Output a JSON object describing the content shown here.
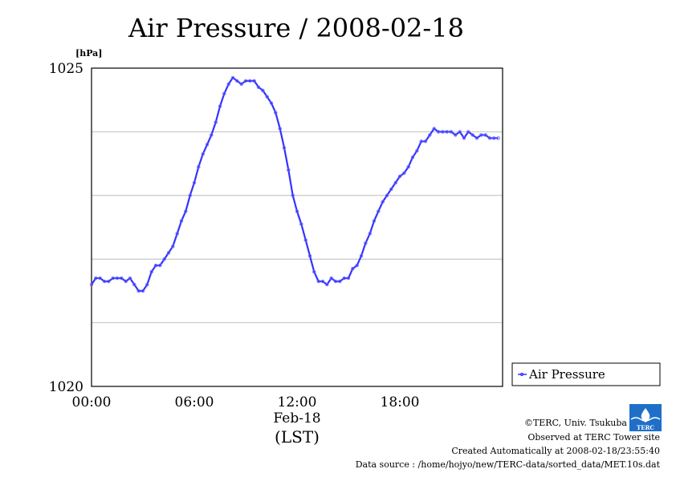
{
  "chart_data": {
    "type": "line",
    "title": "Air Pressure / 2008-02-18",
    "ylabel": "[hPa]",
    "ylim": [
      1020,
      1025
    ],
    "yticks": [
      "1025",
      "1020"
    ],
    "xlim": [
      0,
      24
    ],
    "xticks": [
      "00:00",
      "06:00",
      "12:00",
      "18:00"
    ],
    "xlabel_date": "Feb-18",
    "xlabel_unit": "(LST)",
    "grid": true,
    "legend_position": "right",
    "series": [
      {
        "name": "Air Pressure",
        "color": "#3333ff",
        "x_hours": [
          0,
          0.25,
          0.5,
          0.75,
          1.0,
          1.25,
          1.5,
          1.75,
          2.0,
          2.25,
          2.5,
          2.75,
          3.0,
          3.25,
          3.5,
          3.75,
          4.0,
          4.25,
          4.5,
          4.75,
          5.0,
          5.25,
          5.5,
          5.75,
          6.0,
          6.25,
          6.5,
          6.75,
          7.0,
          7.25,
          7.5,
          7.75,
          8.0,
          8.25,
          8.5,
          8.75,
          9.0,
          9.25,
          9.5,
          9.75,
          10.0,
          10.25,
          10.5,
          10.75,
          11.0,
          11.25,
          11.5,
          11.75,
          12.0,
          12.25,
          12.5,
          12.75,
          13.0,
          13.25,
          13.5,
          13.75,
          14.0,
          14.25,
          14.5,
          14.75,
          15.0,
          15.25,
          15.5,
          15.75,
          16.0,
          16.25,
          16.5,
          16.75,
          17.0,
          17.25,
          17.5,
          17.75,
          18.0,
          18.25,
          18.5,
          18.75,
          19.0,
          19.25,
          19.5,
          19.75,
          20.0,
          20.25,
          20.5,
          20.75,
          21.0,
          21.25,
          21.5,
          21.75,
          22.0,
          22.25,
          22.5,
          22.75,
          23.0,
          23.25,
          23.5,
          23.75
        ],
        "values": [
          1021.6,
          1021.7,
          1021.7,
          1021.65,
          1021.65,
          1021.7,
          1021.7,
          1021.7,
          1021.65,
          1021.7,
          1021.6,
          1021.5,
          1021.5,
          1021.6,
          1021.8,
          1021.9,
          1021.9,
          1022.0,
          1022.1,
          1022.2,
          1022.4,
          1022.6,
          1022.75,
          1023.0,
          1023.2,
          1023.45,
          1023.65,
          1023.8,
          1023.95,
          1024.15,
          1024.4,
          1024.6,
          1024.75,
          1024.85,
          1024.8,
          1024.75,
          1024.8,
          1024.8,
          1024.8,
          1024.7,
          1024.65,
          1024.55,
          1024.45,
          1024.3,
          1024.05,
          1023.75,
          1023.4,
          1023.0,
          1022.75,
          1022.55,
          1022.3,
          1022.05,
          1021.8,
          1021.65,
          1021.65,
          1021.6,
          1021.7,
          1021.65,
          1021.65,
          1021.7,
          1021.7,
          1021.85,
          1021.9,
          1022.05,
          1022.25,
          1022.4,
          1022.6,
          1022.75,
          1022.9,
          1023.0,
          1023.1,
          1023.2,
          1023.3,
          1023.35,
          1023.45,
          1023.6,
          1023.7,
          1023.85,
          1023.85,
          1023.95,
          1024.05,
          1024.0,
          1024.0,
          1024.0,
          1024.0,
          1023.95,
          1024.0,
          1023.9,
          1024.0,
          1023.95,
          1023.9,
          1023.95,
          1023.95,
          1023.9,
          1023.9,
          1023.9
        ]
      }
    ]
  },
  "footer": {
    "copyright": "©TERC, Univ. Tsukuba",
    "observed": "Observed at TERC Tower site",
    "created": "Created Automatically at 2008-02-18/23:55:40",
    "source": "Data source : /home/hojyo/new/TERC-data/sorted_data/MET.10s.dat"
  },
  "logo_text": "TERC"
}
